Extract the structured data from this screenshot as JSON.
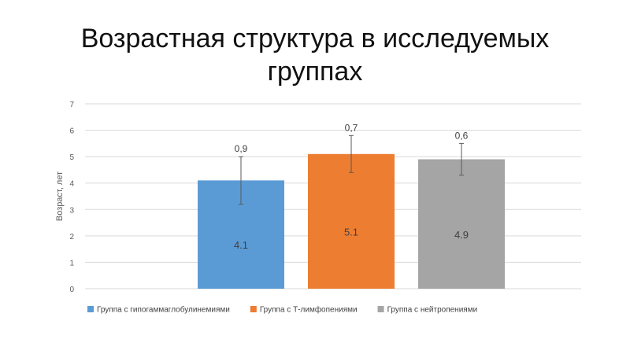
{
  "title": "Возрастная структура в исследуемых группах",
  "chart_data": {
    "type": "bar",
    "ylabel": "Возраст, лет",
    "xlabel": "",
    "ylim": [
      0,
      7
    ],
    "yticks": [
      0,
      1,
      2,
      3,
      4,
      5,
      6,
      7
    ],
    "grid": true,
    "legend": "bottom",
    "series": [
      {
        "name": "Группа с гипогаммаглобулинемиями",
        "value": 4.1,
        "value_label": "4.1",
        "error": 0.9,
        "error_label": "0,9",
        "color": "#5b9bd5"
      },
      {
        "name": "Группа с Т-лимфопениями",
        "value": 5.1,
        "value_label": "5.1",
        "error": 0.7,
        "error_label": "0,7",
        "color": "#ed7d31"
      },
      {
        "name": "Группа с нейтропениями",
        "value": 4.9,
        "value_label": "4.9",
        "error": 0.6,
        "error_label": "0,6",
        "color": "#a5a5a5"
      }
    ]
  }
}
